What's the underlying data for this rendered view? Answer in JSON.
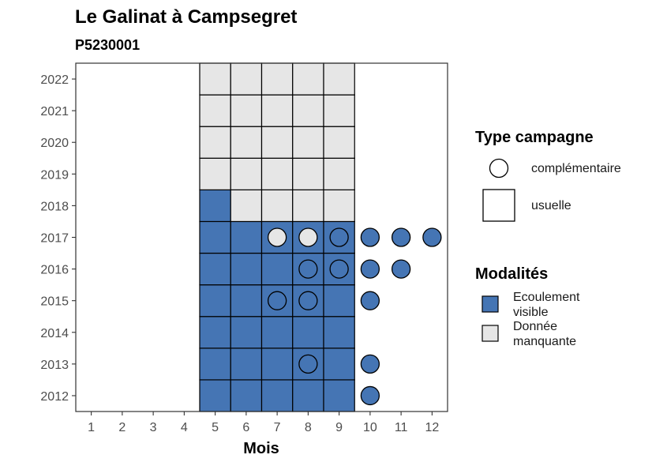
{
  "chart_data": {
    "type": "heatmap",
    "title": "Le Galinat à Campsegret",
    "subtitle": "P5230001",
    "xlabel": "Mois",
    "ylabel": "",
    "x_ticks": [
      "1",
      "2",
      "3",
      "4",
      "5",
      "6",
      "7",
      "8",
      "9",
      "10",
      "11",
      "12"
    ],
    "y_ticks": [
      "2012",
      "2013",
      "2014",
      "2015",
      "2016",
      "2017",
      "2018",
      "2019",
      "2020",
      "2021",
      "2022"
    ],
    "xlim": [
      0.5,
      12.5
    ],
    "ylim": [
      2011.5,
      2022.5
    ],
    "colors": {
      "ecoulement_visible": "#4575b4",
      "donnee_manquante": "#e6e6e6",
      "panel_border": "#333333",
      "tick": "#333333"
    },
    "legend_type": {
      "title": "Type campagne",
      "items": [
        {
          "label": "complémentaire",
          "shape": "circle"
        },
        {
          "label": "usuelle",
          "shape": "square"
        }
      ]
    },
    "legend_modalites": {
      "title": "Modalités",
      "items": [
        {
          "label_lines": [
            "Ecoulement",
            "visible"
          ],
          "key": "ecoulement_visible"
        },
        {
          "label_lines": [
            "Donnée",
            "manquante"
          ],
          "key": "donnee_manquante"
        }
      ]
    },
    "usuelle": [
      {
        "year": 2012,
        "month": 5,
        "m": "ecoulement_visible"
      },
      {
        "year": 2012,
        "month": 6,
        "m": "ecoulement_visible"
      },
      {
        "year": 2012,
        "month": 7,
        "m": "ecoulement_visible"
      },
      {
        "year": 2012,
        "month": 8,
        "m": "ecoulement_visible"
      },
      {
        "year": 2012,
        "month": 9,
        "m": "ecoulement_visible"
      },
      {
        "year": 2013,
        "month": 5,
        "m": "ecoulement_visible"
      },
      {
        "year": 2013,
        "month": 6,
        "m": "ecoulement_visible"
      },
      {
        "year": 2013,
        "month": 7,
        "m": "ecoulement_visible"
      },
      {
        "year": 2013,
        "month": 8,
        "m": "ecoulement_visible"
      },
      {
        "year": 2013,
        "month": 9,
        "m": "ecoulement_visible"
      },
      {
        "year": 2014,
        "month": 5,
        "m": "ecoulement_visible"
      },
      {
        "year": 2014,
        "month": 6,
        "m": "ecoulement_visible"
      },
      {
        "year": 2014,
        "month": 7,
        "m": "ecoulement_visible"
      },
      {
        "year": 2014,
        "month": 8,
        "m": "ecoulement_visible"
      },
      {
        "year": 2014,
        "month": 9,
        "m": "ecoulement_visible"
      },
      {
        "year": 2015,
        "month": 5,
        "m": "ecoulement_visible"
      },
      {
        "year": 2015,
        "month": 6,
        "m": "ecoulement_visible"
      },
      {
        "year": 2015,
        "month": 7,
        "m": "ecoulement_visible"
      },
      {
        "year": 2015,
        "month": 8,
        "m": "ecoulement_visible"
      },
      {
        "year": 2015,
        "month": 9,
        "m": "ecoulement_visible"
      },
      {
        "year": 2016,
        "month": 5,
        "m": "ecoulement_visible"
      },
      {
        "year": 2016,
        "month": 6,
        "m": "ecoulement_visible"
      },
      {
        "year": 2016,
        "month": 7,
        "m": "ecoulement_visible"
      },
      {
        "year": 2016,
        "month": 8,
        "m": "ecoulement_visible"
      },
      {
        "year": 2016,
        "month": 9,
        "m": "ecoulement_visible"
      },
      {
        "year": 2017,
        "month": 5,
        "m": "ecoulement_visible"
      },
      {
        "year": 2017,
        "month": 6,
        "m": "ecoulement_visible"
      },
      {
        "year": 2017,
        "month": 7,
        "m": "ecoulement_visible"
      },
      {
        "year": 2017,
        "month": 8,
        "m": "ecoulement_visible"
      },
      {
        "year": 2017,
        "month": 9,
        "m": "ecoulement_visible"
      },
      {
        "year": 2018,
        "month": 5,
        "m": "ecoulement_visible"
      },
      {
        "year": 2018,
        "month": 6,
        "m": "donnee_manquante"
      },
      {
        "year": 2018,
        "month": 7,
        "m": "donnee_manquante"
      },
      {
        "year": 2018,
        "month": 8,
        "m": "donnee_manquante"
      },
      {
        "year": 2018,
        "month": 9,
        "m": "donnee_manquante"
      },
      {
        "year": 2019,
        "month": 5,
        "m": "donnee_manquante"
      },
      {
        "year": 2019,
        "month": 6,
        "m": "donnee_manquante"
      },
      {
        "year": 2019,
        "month": 7,
        "m": "donnee_manquante"
      },
      {
        "year": 2019,
        "month": 8,
        "m": "donnee_manquante"
      },
      {
        "year": 2019,
        "month": 9,
        "m": "donnee_manquante"
      },
      {
        "year": 2020,
        "month": 5,
        "m": "donnee_manquante"
      },
      {
        "year": 2020,
        "month": 6,
        "m": "donnee_manquante"
      },
      {
        "year": 2020,
        "month": 7,
        "m": "donnee_manquante"
      },
      {
        "year": 2020,
        "month": 8,
        "m": "donnee_manquante"
      },
      {
        "year": 2020,
        "month": 9,
        "m": "donnee_manquante"
      },
      {
        "year": 2021,
        "month": 5,
        "m": "donnee_manquante"
      },
      {
        "year": 2021,
        "month": 6,
        "m": "donnee_manquante"
      },
      {
        "year": 2021,
        "month": 7,
        "m": "donnee_manquante"
      },
      {
        "year": 2021,
        "month": 8,
        "m": "donnee_manquante"
      },
      {
        "year": 2021,
        "month": 9,
        "m": "donnee_manquante"
      },
      {
        "year": 2022,
        "month": 5,
        "m": "donnee_manquante"
      },
      {
        "year": 2022,
        "month": 6,
        "m": "donnee_manquante"
      },
      {
        "year": 2022,
        "month": 7,
        "m": "donnee_manquante"
      },
      {
        "year": 2022,
        "month": 8,
        "m": "donnee_manquante"
      },
      {
        "year": 2022,
        "month": 9,
        "m": "donnee_manquante"
      }
    ],
    "complementaire": [
      {
        "year": 2017,
        "month": 7,
        "m": "donnee_manquante"
      },
      {
        "year": 2017,
        "month": 8,
        "m": "donnee_manquante"
      },
      {
        "year": 2017,
        "month": 9,
        "m": "ecoulement_visible"
      },
      {
        "year": 2017,
        "month": 10,
        "m": "ecoulement_visible"
      },
      {
        "year": 2017,
        "month": 11,
        "m": "ecoulement_visible"
      },
      {
        "year": 2017,
        "month": 12,
        "m": "ecoulement_visible"
      },
      {
        "year": 2016,
        "month": 8,
        "m": "ecoulement_visible"
      },
      {
        "year": 2016,
        "month": 9,
        "m": "ecoulement_visible"
      },
      {
        "year": 2016,
        "month": 10,
        "m": "ecoulement_visible"
      },
      {
        "year": 2016,
        "month": 11,
        "m": "ecoulement_visible"
      },
      {
        "year": 2015,
        "month": 7,
        "m": "ecoulement_visible"
      },
      {
        "year": 2015,
        "month": 8,
        "m": "ecoulement_visible"
      },
      {
        "year": 2015,
        "month": 10,
        "m": "ecoulement_visible"
      },
      {
        "year": 2013,
        "month": 8,
        "m": "ecoulement_visible"
      },
      {
        "year": 2013,
        "month": 10,
        "m": "ecoulement_visible"
      },
      {
        "year": 2012,
        "month": 10,
        "m": "ecoulement_visible"
      }
    ]
  }
}
